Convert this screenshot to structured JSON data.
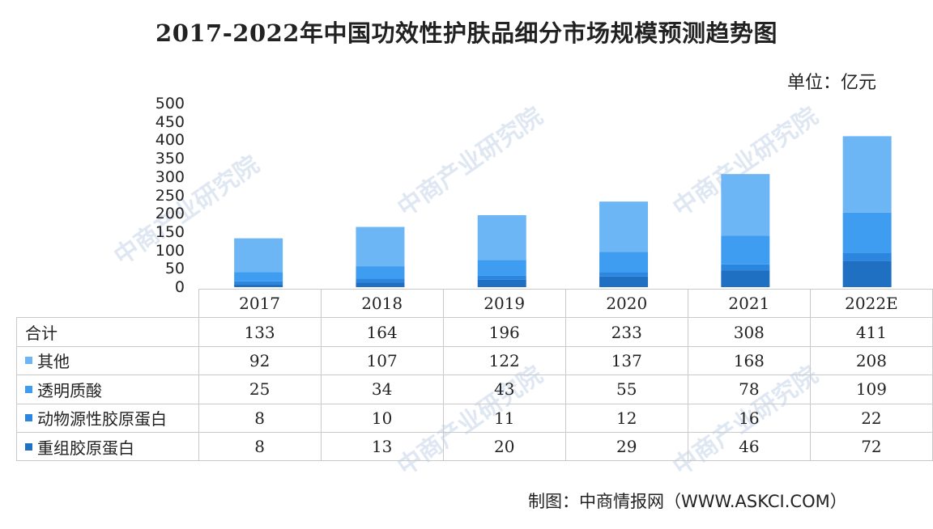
{
  "chart_data": {
    "type": "bar",
    "stacked": true,
    "title": "2017-2022年中国功效性护肤品细分市场规模预测趋势图",
    "unit": "单位：亿元",
    "categories": [
      "2017",
      "2018",
      "2019",
      "2020",
      "2021",
      "2022E"
    ],
    "ylim": [
      0,
      500
    ],
    "yticks": [
      "500",
      "450",
      "400",
      "350",
      "300",
      "250",
      "200",
      "150",
      "100",
      "50",
      "0"
    ],
    "total_label": "合计",
    "totals": [
      133,
      164,
      196,
      233,
      308,
      411
    ],
    "series": [
      {
        "name": "重组胶原蛋白",
        "color": "#1f6fc2",
        "values": [
          8,
          13,
          20,
          29,
          46,
          72
        ]
      },
      {
        "name": "动物源性胶原蛋白",
        "color": "#2a86de",
        "values": [
          8,
          10,
          11,
          12,
          16,
          22
        ]
      },
      {
        "name": "透明质酸",
        "color": "#3e9df0",
        "values": [
          25,
          34,
          43,
          55,
          78,
          109
        ]
      },
      {
        "name": "其他",
        "color": "#6db6f5",
        "values": [
          92,
          107,
          122,
          137,
          168,
          208
        ]
      }
    ],
    "table_rows": [
      {
        "name": "其他",
        "color": "#6db6f5",
        "values": [
          "92",
          "107",
          "122",
          "137",
          "168",
          "208"
        ]
      },
      {
        "name": "透明质酸",
        "color": "#3e9df0",
        "values": [
          "25",
          "34",
          "43",
          "55",
          "78",
          "109"
        ]
      },
      {
        "name": "动物源性胶原蛋白",
        "color": "#2a86de",
        "values": [
          "8",
          "10",
          "11",
          "12",
          "16",
          "22"
        ]
      },
      {
        "name": "重组胶原蛋白",
        "color": "#1f6fc2",
        "values": [
          "8",
          "13",
          "20",
          "29",
          "46",
          "72"
        ]
      }
    ],
    "total_row": [
      "133",
      "164",
      "196",
      "233",
      "308",
      "411"
    ]
  },
  "source": "制图：中商情报网（WWW.ASKCI.COM）",
  "watermark": "中商产业研究院"
}
